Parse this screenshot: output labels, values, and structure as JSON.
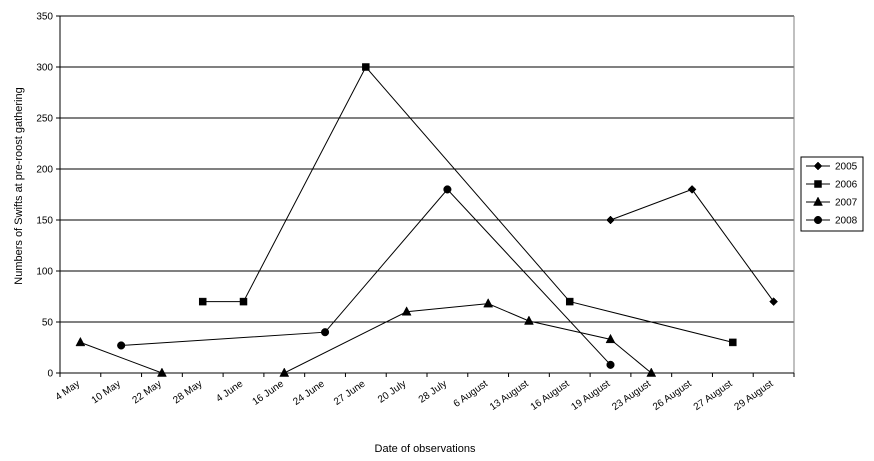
{
  "chart_data": {
    "type": "line",
    "title": "",
    "xlabel": "Date of observations",
    "ylabel": "Numbers of Swifts at pre-roost gathering",
    "ylim": [
      0,
      350
    ],
    "yticks": [
      0,
      50,
      100,
      150,
      200,
      250,
      300,
      350
    ],
    "grid": "horizontal",
    "legend_position": "right",
    "categories": [
      "4 May",
      "10 May",
      "22 May",
      "28 May",
      "4 June",
      "16 June",
      "24 June",
      "27 June",
      "20 July",
      "28 July",
      "6 August",
      "13 August",
      "16 August",
      "19 August",
      "23 August",
      "26 August",
      "27 August",
      "29 August"
    ],
    "series": [
      {
        "name": "2005",
        "marker": "diamond",
        "points": [
          [
            13,
            150
          ],
          [
            15,
            180
          ],
          [
            17,
            70
          ]
        ]
      },
      {
        "name": "2006",
        "marker": "square",
        "points": [
          [
            3,
            70
          ],
          [
            4,
            70
          ],
          [
            7,
            300
          ],
          [
            12,
            70
          ],
          [
            16,
            30
          ]
        ]
      },
      {
        "name": "2007",
        "marker": "triangle",
        "points": [
          [
            0,
            30
          ],
          [
            2,
            0
          ],
          [
            5,
            0
          ],
          [
            8,
            60
          ],
          [
            10,
            68
          ],
          [
            11,
            51
          ],
          [
            13,
            33
          ],
          [
            14,
            0
          ]
        ]
      },
      {
        "name": "2008",
        "marker": "circle",
        "points": [
          [
            1,
            27
          ],
          [
            6,
            40
          ],
          [
            9,
            180
          ],
          [
            13,
            8
          ]
        ]
      }
    ]
  }
}
